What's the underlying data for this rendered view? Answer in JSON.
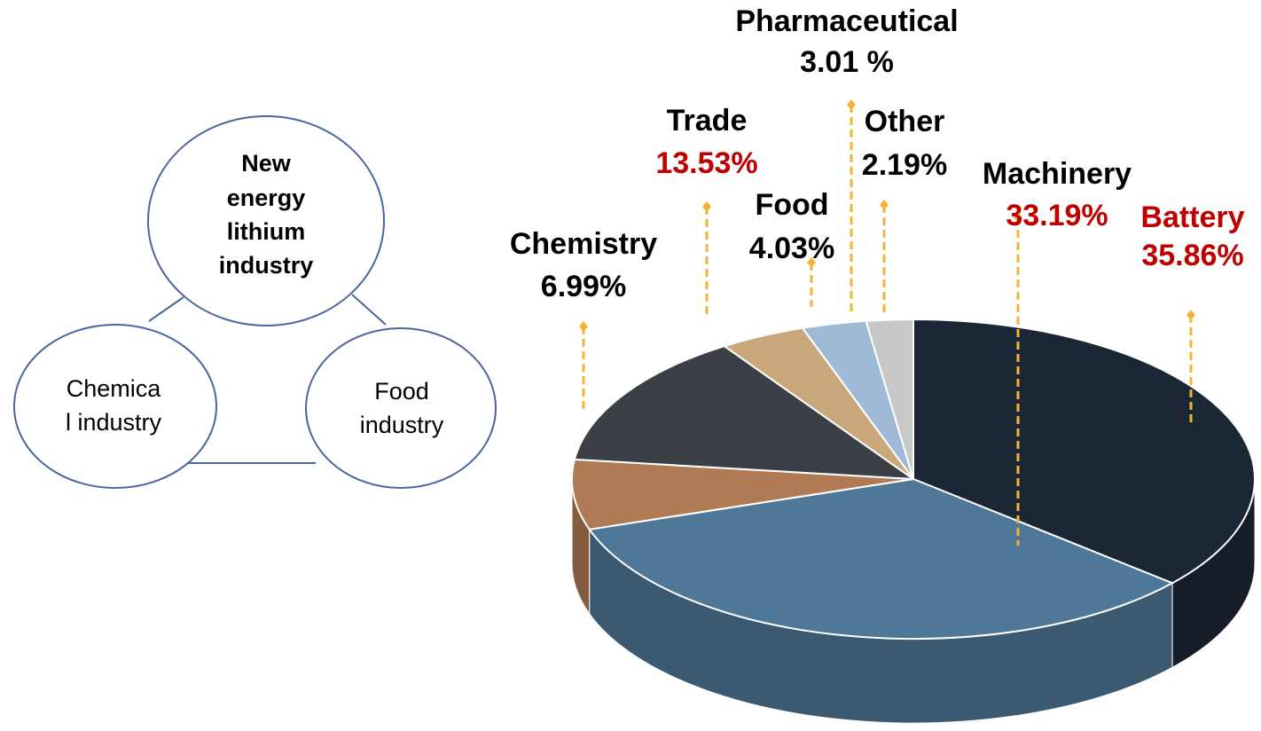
{
  "diagram": {
    "nodes": [
      {
        "label_lines": [
          "New",
          "energy",
          "lithium",
          "industry"
        ]
      },
      {
        "label_lines": [
          "Chemica",
          "l industry"
        ]
      },
      {
        "label_lines": [
          "Food",
          "industry"
        ]
      }
    ]
  },
  "chart_data": {
    "type": "pie3d",
    "categories": [
      "Battery",
      "Machinery",
      "Chemistry",
      "Trade",
      "Food",
      "Pharmaceutical",
      "Other"
    ],
    "values": [
      35.86,
      33.19,
      6.99,
      13.53,
      4.03,
      3.01,
      2.19
    ],
    "value_labels": [
      "35.86%",
      "33.19%",
      "6.99%",
      "13.53%",
      "4.03%",
      "3.01 %",
      "2.19%"
    ],
    "colors": [
      "#1c2736",
      "#4f7797",
      "#b07a55",
      "#3b3f46",
      "#c9a77a",
      "#9fb9d6",
      "#c8c8c8"
    ],
    "name_colors": [
      "#c00000",
      "#000000",
      "#000000",
      "#000000",
      "#000000",
      "#000000",
      "#000000"
    ],
    "value_colors": [
      "#c00000",
      "#c00000",
      "#000000",
      "#c00000",
      "#000000",
      "#000000",
      "#000000"
    ],
    "leader_color": "#f5b335"
  }
}
